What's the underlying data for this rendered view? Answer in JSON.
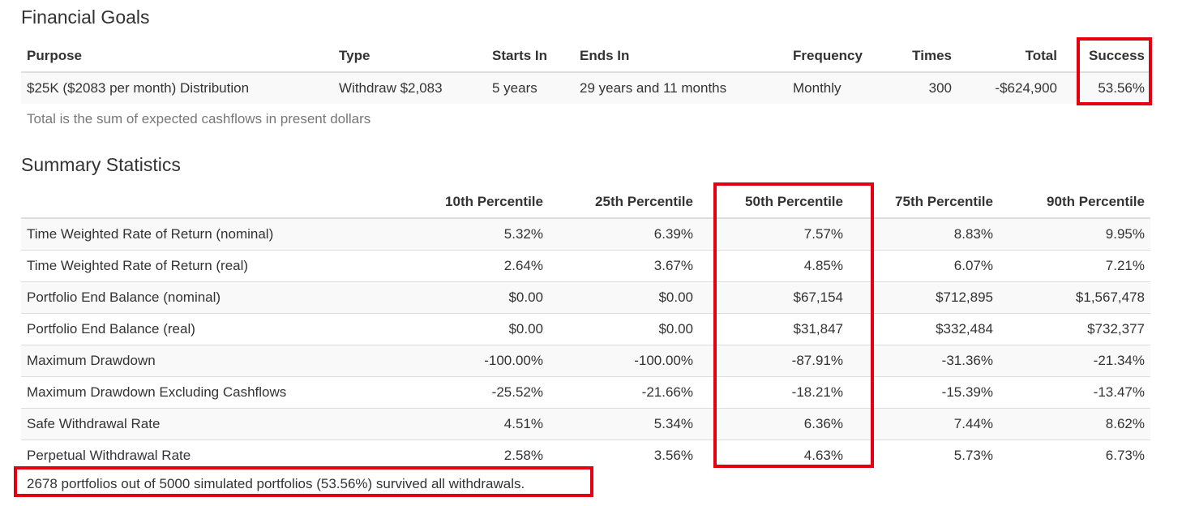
{
  "financial_goals": {
    "title": "Financial Goals",
    "columns": [
      "Purpose",
      "Type",
      "Starts In",
      "Ends In",
      "Frequency",
      "Times",
      "Total",
      "Success"
    ],
    "rows": [
      {
        "purpose": "$25K ($2083 per month) Distribution",
        "type": "Withdraw $2,083",
        "starts_in": "5 years",
        "ends_in": "29 years and 11 months",
        "frequency": "Monthly",
        "times": "300",
        "total": "-$624,900",
        "success": "53.56%"
      }
    ],
    "note": "Total is the sum of expected cashflows in present dollars"
  },
  "summary_statistics": {
    "title": "Summary Statistics",
    "columns": [
      "",
      "10th Percentile",
      "25th Percentile",
      "50th Percentile",
      "75th Percentile",
      "90th Percentile"
    ],
    "rows": [
      {
        "label": "Time Weighted Rate of Return (nominal)",
        "values": [
          "5.32%",
          "6.39%",
          "7.57%",
          "8.83%",
          "9.95%"
        ]
      },
      {
        "label": "Time Weighted Rate of Return (real)",
        "values": [
          "2.64%",
          "3.67%",
          "4.85%",
          "6.07%",
          "7.21%"
        ]
      },
      {
        "label": "Portfolio End Balance (nominal)",
        "values": [
          "$0.00",
          "$0.00",
          "$67,154",
          "$712,895",
          "$1,567,478"
        ]
      },
      {
        "label": "Portfolio End Balance (real)",
        "values": [
          "$0.00",
          "$0.00",
          "$31,847",
          "$332,484",
          "$732,377"
        ]
      },
      {
        "label": "Maximum Drawdown",
        "values": [
          "-100.00%",
          "-100.00%",
          "-87.91%",
          "-31.36%",
          "-21.34%"
        ]
      },
      {
        "label": "Maximum Drawdown Excluding Cashflows",
        "values": [
          "-25.52%",
          "-21.66%",
          "-18.21%",
          "-15.39%",
          "-13.47%"
        ]
      },
      {
        "label": "Safe Withdrawal Rate",
        "values": [
          "4.51%",
          "5.34%",
          "6.36%",
          "7.44%",
          "8.62%"
        ]
      },
      {
        "label": "Perpetual Withdrawal Rate",
        "values": [
          "2.58%",
          "3.56%",
          "4.63%",
          "5.73%",
          "6.73%"
        ]
      }
    ],
    "survival_note": "2678 portfolios out of 5000 simulated portfolios (53.56%) survived all withdrawals."
  },
  "colors": {
    "highlight": "#e3000f",
    "row_stripe": "#f9f9f9",
    "border": "#dddddd",
    "text": "#333333",
    "muted_text": "#777777"
  }
}
